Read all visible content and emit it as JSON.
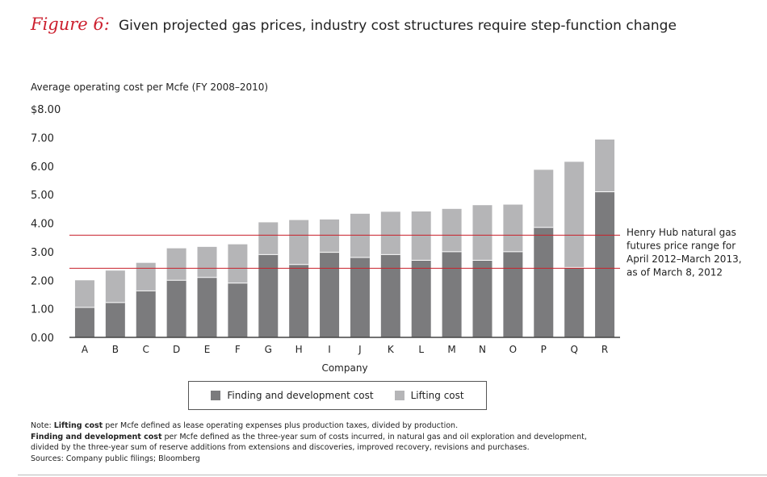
{
  "header": {
    "figure_label": "Figure 6:",
    "title": "Given projected gas prices, industry cost structures require step-function change"
  },
  "colors": {
    "finding": "#7b7b7d",
    "lifting": "#b5b5b7",
    "reference_line": "#c8202b",
    "axis": "#444444"
  },
  "chart_data": {
    "type": "bar",
    "stacked": true,
    "title": "Given projected gas prices, industry cost structures require step-function change",
    "ylabel": "Average operating cost per Mcfe (FY 2008–2010)",
    "xlabel": "Company",
    "ylim": [
      0,
      8
    ],
    "yticks": [
      "0.00",
      "1.00",
      "2.00",
      "3.00",
      "4.00",
      "5.00",
      "6.00",
      "7.00",
      "$8.00"
    ],
    "categories": [
      "A",
      "B",
      "C",
      "D",
      "E",
      "F",
      "G",
      "H",
      "I",
      "J",
      "K",
      "L",
      "M",
      "N",
      "O",
      "P",
      "Q",
      "R"
    ],
    "series": [
      {
        "name": "Finding and development cost",
        "values": [
          1.05,
          1.22,
          1.63,
          2.0,
          2.1,
          1.9,
          2.9,
          2.55,
          2.98,
          2.8,
          2.9,
          2.7,
          3.0,
          2.7,
          3.0,
          3.85,
          2.45,
          5.1
        ]
      },
      {
        "name": "Lifting cost",
        "values": [
          0.95,
          1.12,
          0.98,
          1.12,
          1.07,
          1.36,
          1.13,
          1.56,
          1.15,
          1.53,
          1.5,
          1.71,
          1.5,
          1.93,
          1.65,
          2.02,
          3.7,
          1.83
        ]
      }
    ],
    "reference_lines": [
      3.58,
      2.42
    ],
    "annotation": [
      "Henry Hub natural gas",
      "futures price range for",
      "April 2012–March 2013,",
      "as of March 8, 2012"
    ],
    "legend_position": "bottom"
  },
  "notes": {
    "line1_bold": "Lifting cost",
    "line1_prefix": "Note: ",
    "line1_rest": " per Mcfe defined as lease operating expenses plus production taxes, divided by production.",
    "line2_bold": "Finding and development cost",
    "line2_rest": " per Mcfe defined as the three-year sum of costs incurred, in natural gas and oil exploration and development,",
    "line3": "divided by the three-year sum of reserve additions from extensions and discoveries, improved recovery, revisions and purchases.",
    "line4": "Sources: Company public filings; Bloomberg"
  }
}
